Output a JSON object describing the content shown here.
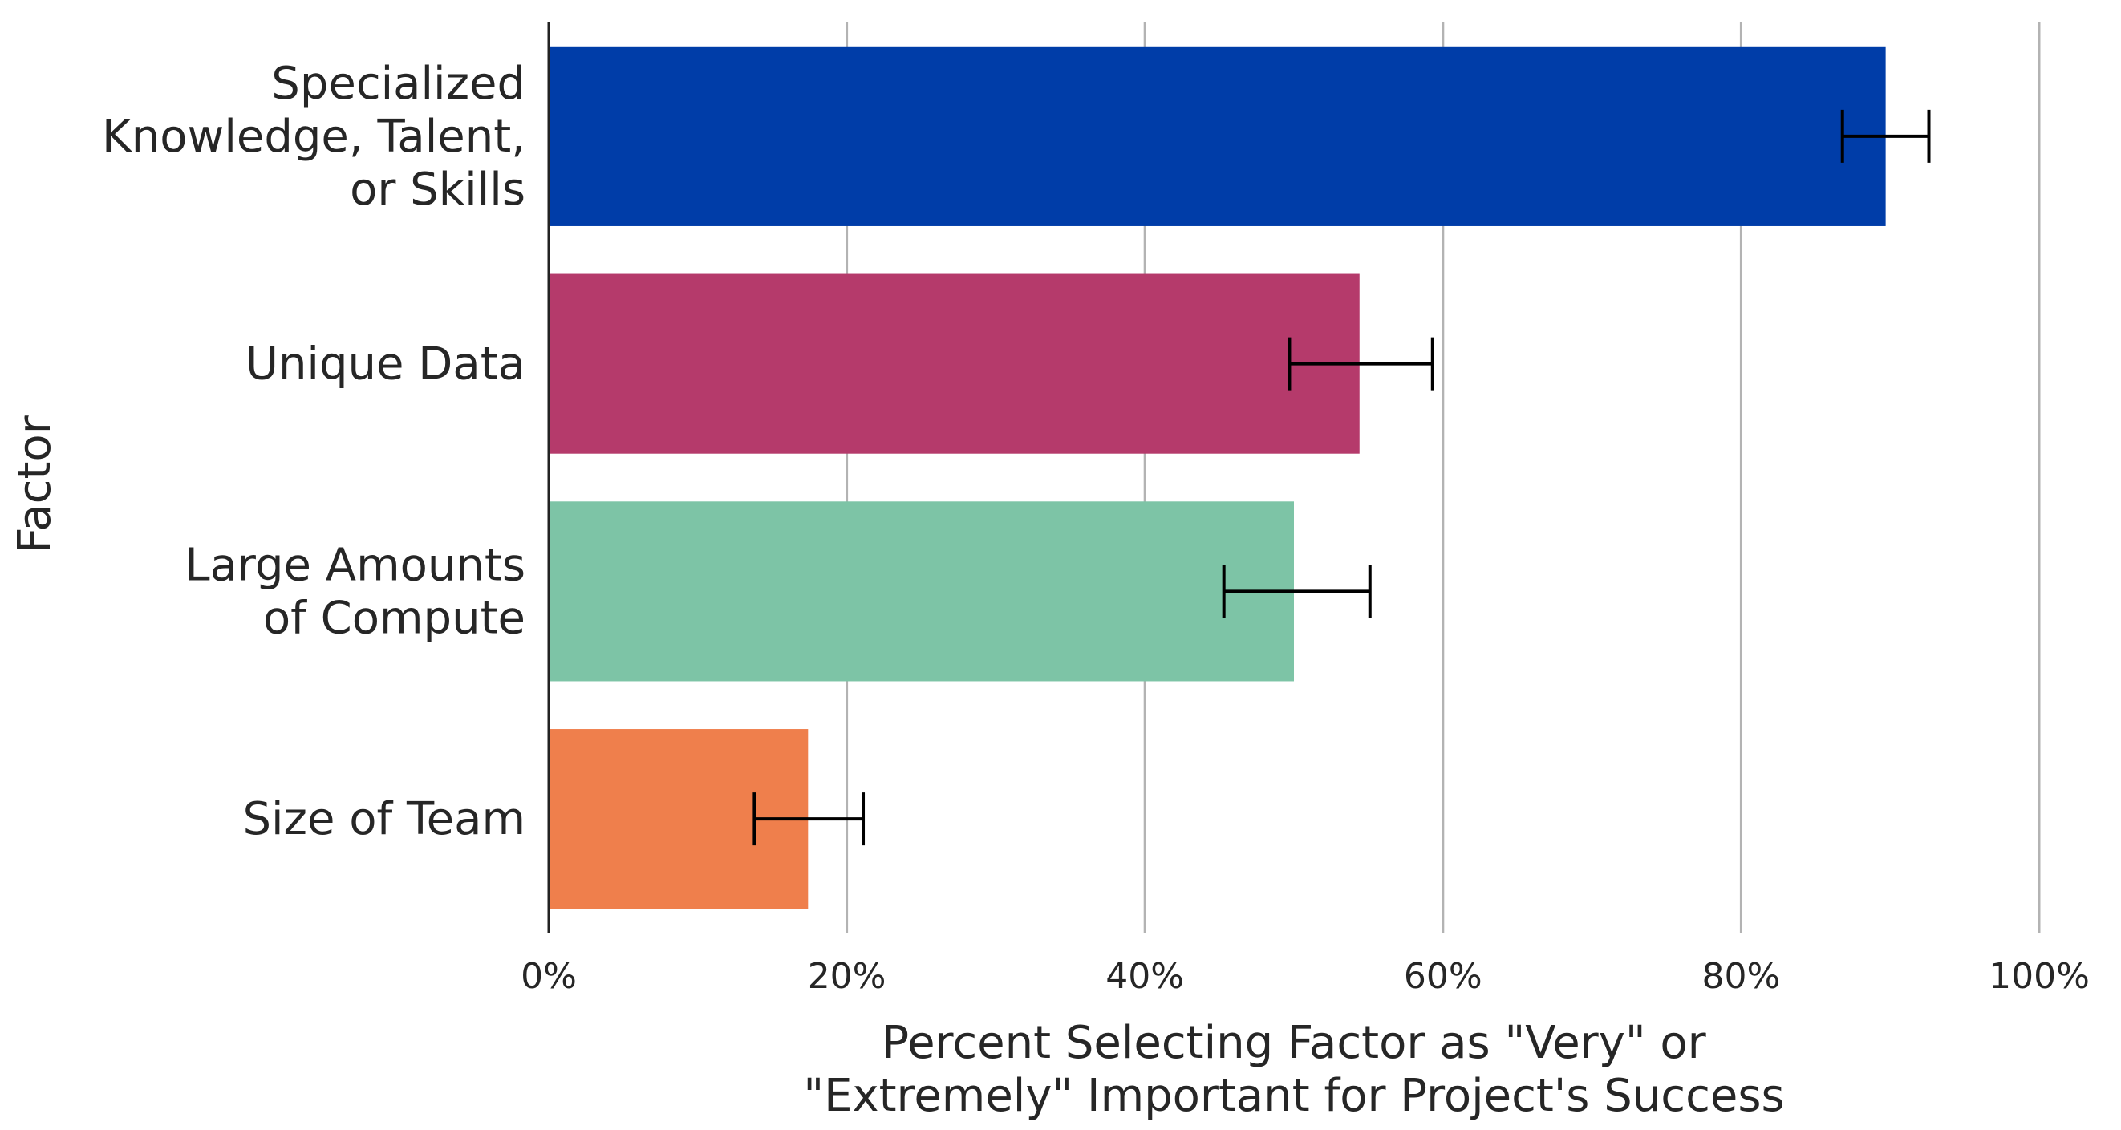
{
  "chart_data": {
    "type": "bar",
    "orientation": "horizontal",
    "categories": [
      [
        "Specialized",
        "Knowledge, Talent,",
        "or Skills"
      ],
      [
        "Unique Data"
      ],
      [
        "Large Amounts",
        "of Compute"
      ],
      [
        "Size of Team"
      ]
    ],
    "values": [
      89.7,
      54.4,
      50.0,
      17.4
    ],
    "error_low": [
      86.8,
      49.7,
      45.3,
      13.8
    ],
    "error_high": [
      92.6,
      59.3,
      55.1,
      21.1
    ],
    "colors": [
      "#003da8",
      "#b53a6b",
      "#7dc4a6",
      "#ef7f4c"
    ],
    "xlim": [
      0,
      100
    ],
    "xticks": [
      0,
      20,
      40,
      60,
      80,
      100
    ],
    "xtick_labels": [
      "0%",
      "20%",
      "40%",
      "60%",
      "80%",
      "100%"
    ],
    "xlabel": [
      "Percent Selecting Factor as \"Very\" or",
      "\"Extremely\" Important for Project's Success"
    ],
    "ylabel": "Factor",
    "grid": "vertical"
  }
}
